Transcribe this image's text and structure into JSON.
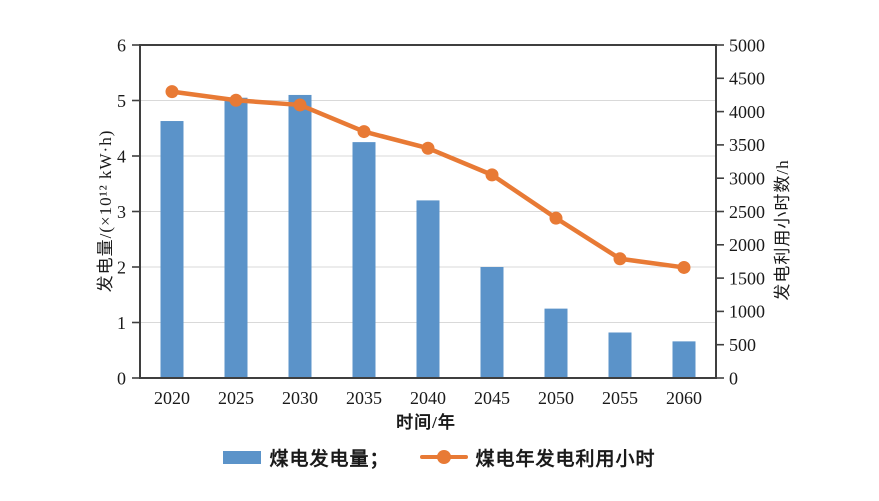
{
  "page": {
    "background": "#FFFFFF"
  },
  "colors": {
    "bar": "#5B93C9",
    "line": "#E87A35",
    "axis": "#3F3F3F",
    "grid": "#D9D9D9",
    "text": "#1A1A1A"
  },
  "chart": {
    "left_axis": {
      "title": "发电量/(×10¹² kW·h)",
      "ticks": [
        "0",
        "1",
        "2",
        "3",
        "4",
        "5",
        "6"
      ]
    },
    "right_axis": {
      "title": "发电利用小时数/h",
      "ticks": [
        "0",
        "500",
        "1000",
        "1500",
        "2000",
        "2500",
        "3000",
        "3500",
        "4000",
        "4500",
        "5000"
      ]
    },
    "x_axis": {
      "title": "时间/年"
    },
    "legend": {
      "bar_label": "煤电发电量；",
      "line_label": "煤电年发电利用小时"
    }
  },
  "chart_data": {
    "type": "bar+line",
    "title": "",
    "categories": [
      "2020",
      "2025",
      "2030",
      "2035",
      "2040",
      "2045",
      "2050",
      "2055",
      "2060"
    ],
    "series": [
      {
        "name": "煤电发电量",
        "type": "bar",
        "axis": "left",
        "unit": "×10¹² kW·h",
        "color": "#5B93C9",
        "values": [
          4.63,
          5.05,
          5.1,
          4.25,
          3.2,
          2.0,
          1.25,
          0.82,
          0.66
        ]
      },
      {
        "name": "煤电年发电利用小时",
        "type": "line",
        "axis": "right",
        "unit": "h",
        "color": "#E87A35",
        "values": [
          4300,
          4170,
          4100,
          3700,
          3450,
          3050,
          2400,
          1790,
          1660
        ]
      }
    ],
    "xlabel": "时间/年",
    "ylabel_left": "发电量/(×10¹² kW·h)",
    "ylabel_right": "发电利用小时数/h",
    "ylim_left": [
      0,
      6
    ],
    "ylim_right": [
      0,
      5000
    ],
    "left_tick_step": 1,
    "right_tick_step": 500,
    "grid": "horizontal light-gray lines at left-axis integers 1-5",
    "legend_position": "bottom center"
  }
}
